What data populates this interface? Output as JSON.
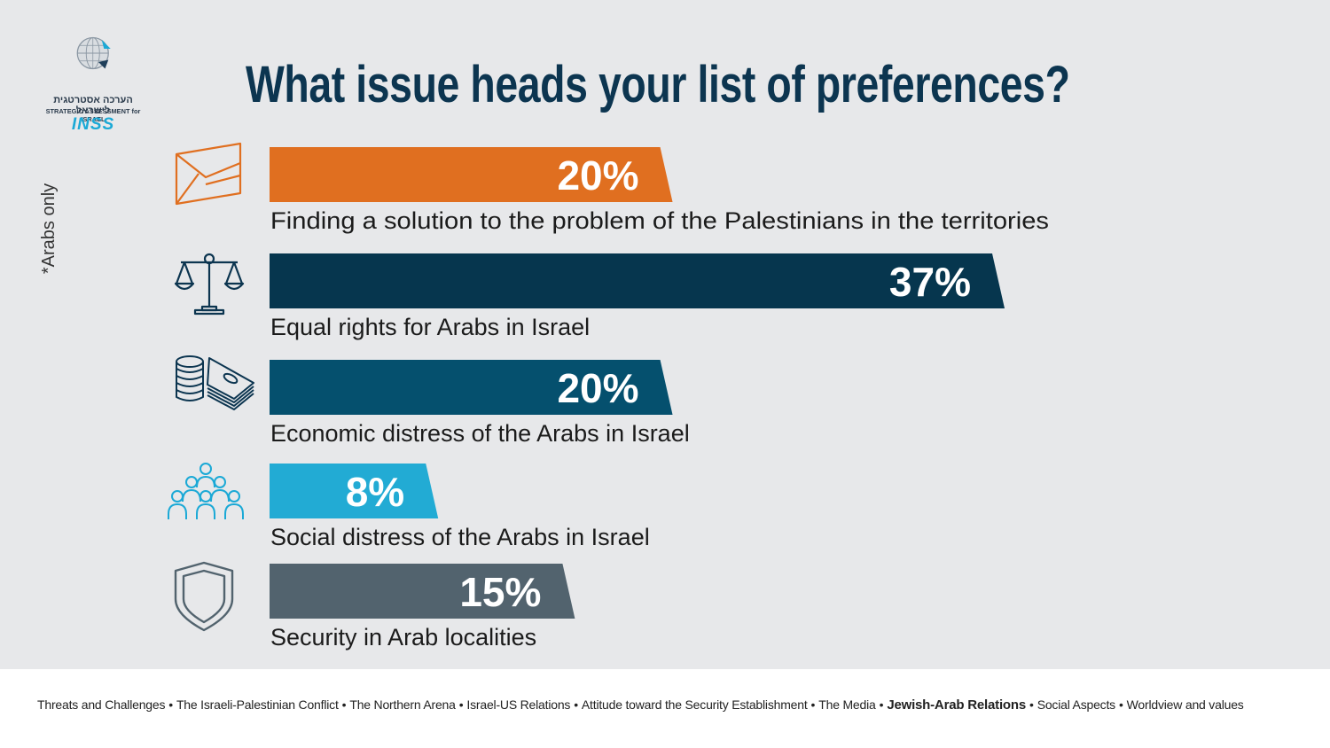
{
  "logo": {
    "hebrew": "הערכה אסטרטגית לישראל",
    "english": "STRATEGIC ASSESSMENT for ISRAEL",
    "brand": "INSS"
  },
  "note": "*Arabs only",
  "chart_data": {
    "type": "bar",
    "orientation": "horizontal",
    "title": "What issue heads your list of preferences?",
    "categories": [
      "Finding a solution to the problem of the Palestinians in the territories",
      "Equal rights for Arabs in Israel",
      "Economic distress of the Arabs in Israel",
      "Social distress of the Arabs in Israel",
      "Security in Arab localities"
    ],
    "values": [
      20,
      37,
      20,
      8,
      15
    ],
    "value_labels": [
      "20%",
      "37%",
      "20%",
      "8%",
      "15%"
    ],
    "unit": "%",
    "colors": [
      "#e06f20",
      "#06364e",
      "#05506e",
      "#22abd4",
      "#52636e"
    ],
    "icons": [
      "envelope-icon",
      "scales-icon",
      "money-icon",
      "people-icon",
      "shield-icon"
    ],
    "xlim": [
      0,
      37
    ],
    "grid": false,
    "legend": "none"
  },
  "footer": {
    "topics": [
      "Threats and Challenges",
      "The Israeli-Palestinian Conflict",
      "The Northern  Arena",
      "Israel-US Relations",
      "Attitude toward the Security Establishment",
      "The Media",
      "Jewish-Arab Relations",
      "Social Aspects",
      "Worldview and values"
    ],
    "active_index": 6,
    "separator": "•"
  }
}
